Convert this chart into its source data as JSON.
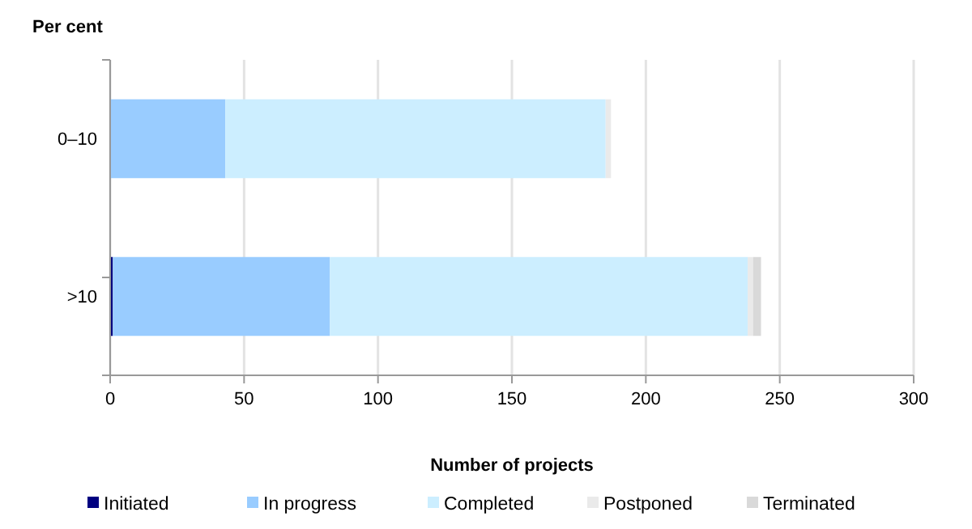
{
  "chart_data": {
    "type": "bar",
    "orientation": "horizontal",
    "stacked": true,
    "ylabel": "Per cent",
    "xlabel": "Number of projects",
    "categories": [
      "0–10",
      ">10"
    ],
    "series": [
      {
        "name": "Initiated",
        "color": "#000080",
        "values": [
          0,
          1
        ]
      },
      {
        "name": "In progress",
        "color": "#99ccff",
        "values": [
          43,
          81
        ]
      },
      {
        "name": "Completed",
        "color": "#cceeff",
        "values": [
          142,
          156
        ]
      },
      {
        "name": "Postponed",
        "color": "#eaeaea",
        "values": [
          2,
          2
        ]
      },
      {
        "name": "Terminated",
        "color": "#d9d9d9",
        "values": [
          0,
          3
        ]
      }
    ],
    "xlim": [
      0,
      300
    ],
    "xticks": [
      0,
      50,
      100,
      150,
      200,
      250,
      300
    ],
    "grid": "x",
    "legend": "bottom"
  }
}
